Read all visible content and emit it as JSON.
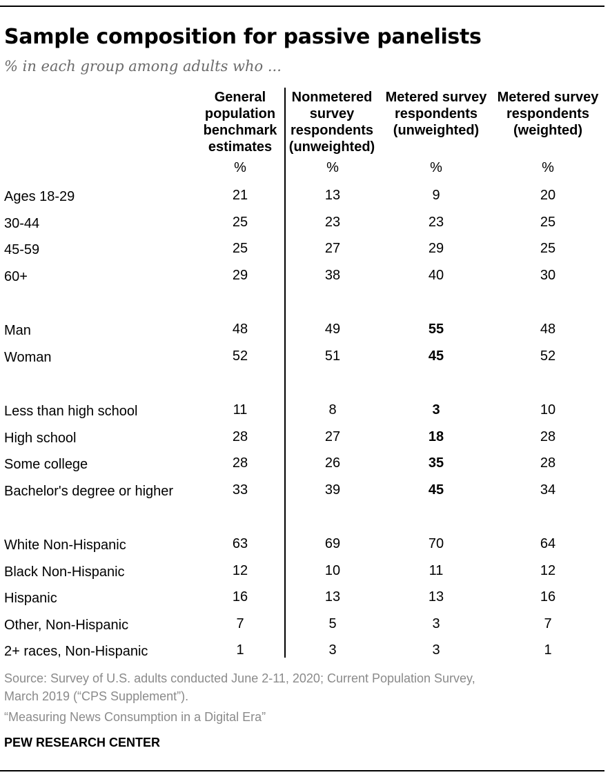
{
  "title": "Sample composition for passive panelists",
  "subtitle": "% in each group among adults who ...",
  "chart_data": {
    "type": "table",
    "columns": [
      "General population benchmark estimates",
      "Nonmetered survey respondents (unweighted)",
      "Metered survey respondents (unweighted)",
      "Metered survey respondents (weighted)"
    ],
    "unit_row": [
      "%",
      "%",
      "%",
      "%"
    ],
    "groups": [
      {
        "rows": [
          {
            "label": "Ages 18-29",
            "values": [
              21,
              13,
              9,
              20
            ],
            "bold_col": null
          },
          {
            "label": "30-44",
            "values": [
              25,
              23,
              23,
              25
            ],
            "bold_col": null
          },
          {
            "label": "45-59",
            "values": [
              25,
              27,
              29,
              25
            ],
            "bold_col": null
          },
          {
            "label": "60+",
            "values": [
              29,
              38,
              40,
              30
            ],
            "bold_col": null
          }
        ]
      },
      {
        "rows": [
          {
            "label": "Man",
            "values": [
              48,
              49,
              55,
              48
            ],
            "bold_col": 2
          },
          {
            "label": "Woman",
            "values": [
              52,
              51,
              45,
              52
            ],
            "bold_col": 2
          }
        ]
      },
      {
        "rows": [
          {
            "label": "Less than high school",
            "values": [
              11,
              8,
              3,
              10
            ],
            "bold_col": 2
          },
          {
            "label": "High school",
            "values": [
              28,
              27,
              18,
              28
            ],
            "bold_col": 2
          },
          {
            "label": "Some college",
            "values": [
              28,
              26,
              35,
              28
            ],
            "bold_col": 2
          },
          {
            "label": "Bachelor's degree or higher",
            "values": [
              33,
              39,
              45,
              34
            ],
            "bold_col": 2
          }
        ]
      },
      {
        "rows": [
          {
            "label": "White Non-Hispanic",
            "values": [
              63,
              69,
              70,
              64
            ],
            "bold_col": null
          },
          {
            "label": "Black Non-Hispanic",
            "values": [
              12,
              10,
              11,
              12
            ],
            "bold_col": null
          },
          {
            "label": "Hispanic",
            "values": [
              16,
              13,
              13,
              16
            ],
            "bold_col": null
          },
          {
            "label": "Other, Non-Hispanic",
            "values": [
              7,
              5,
              3,
              7
            ],
            "bold_col": null
          },
          {
            "label": "2+ races, Non-Hispanic",
            "values": [
              1,
              3,
              3,
              1
            ],
            "bold_col": null
          }
        ]
      }
    ]
  },
  "footer": {
    "source_line1": "Source: Survey of U.S. adults conducted June 2-11, 2020; Current Population Survey,",
    "source_line2": "March 2019 (“CPS Supplement”).",
    "report": "“Measuring News Consumption in a Digital Era”",
    "brand": "PEW RESEARCH CENTER"
  }
}
